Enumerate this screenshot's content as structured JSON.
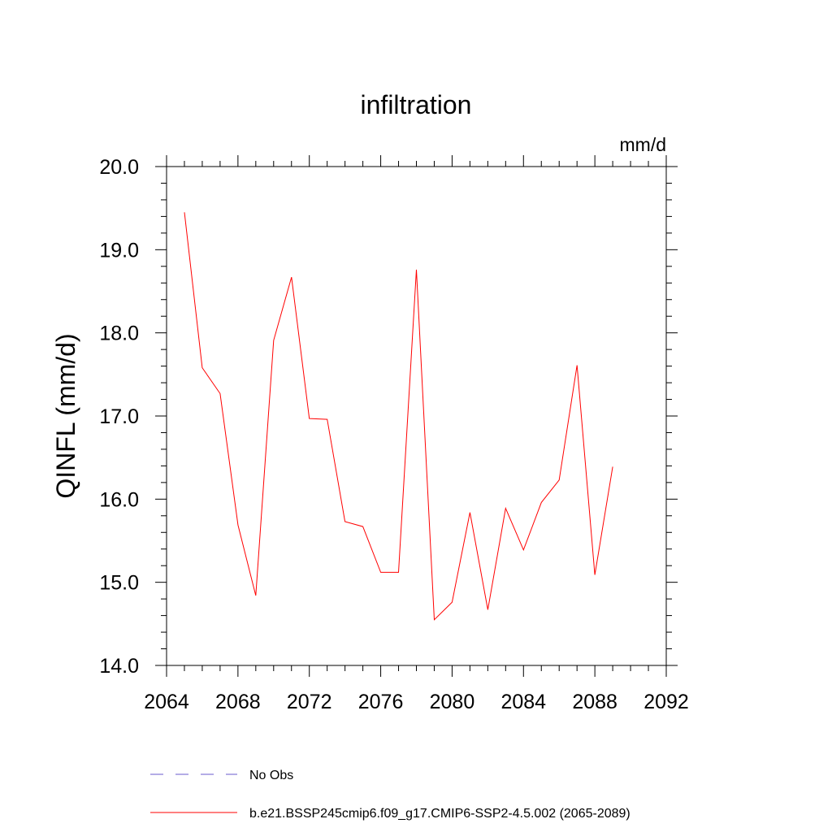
{
  "chart_data": {
    "type": "line",
    "title": "infiltration",
    "units": "mm/d",
    "ylabel": "QINFL  (mm/d)",
    "xlim": [
      2064,
      2092
    ],
    "ylim": [
      14.0,
      20.0
    ],
    "x_ticks": [
      2064,
      2068,
      2072,
      2076,
      2080,
      2084,
      2088,
      2092
    ],
    "x_tick_labels": [
      "2064",
      "2068",
      "2072",
      "2076",
      "2080",
      "2084",
      "2088",
      "2092"
    ],
    "y_ticks": [
      14.0,
      15.0,
      16.0,
      17.0,
      18.0,
      19.0,
      20.0
    ],
    "y_tick_labels": [
      "14.0",
      "15.0",
      "16.0",
      "17.0",
      "18.0",
      "19.0",
      "20.0"
    ],
    "legend_placement": "bottom",
    "series": [
      {
        "name": "No Obs",
        "color": "#6a5acd",
        "dashed": true,
        "x": [],
        "values": []
      },
      {
        "name": "b.e21.BSSP245cmip6.f09_g17.CMIP6-SSP2-4.5.002 (2065-2089)",
        "color": "#ff0000",
        "dashed": false,
        "x": [
          2065,
          2066,
          2067,
          2068,
          2069,
          2070,
          2071,
          2072,
          2073,
          2074,
          2075,
          2076,
          2077,
          2078,
          2079,
          2080,
          2081,
          2082,
          2083,
          2084,
          2085,
          2086,
          2087,
          2088,
          2089
        ],
        "values": [
          19.45,
          17.58,
          17.27,
          15.69,
          14.84,
          17.91,
          18.67,
          16.97,
          16.96,
          15.73,
          15.67,
          15.12,
          15.12,
          18.76,
          14.55,
          14.76,
          15.84,
          14.67,
          15.89,
          15.39,
          15.96,
          16.23,
          17.61,
          15.09,
          16.39
        ]
      }
    ]
  }
}
